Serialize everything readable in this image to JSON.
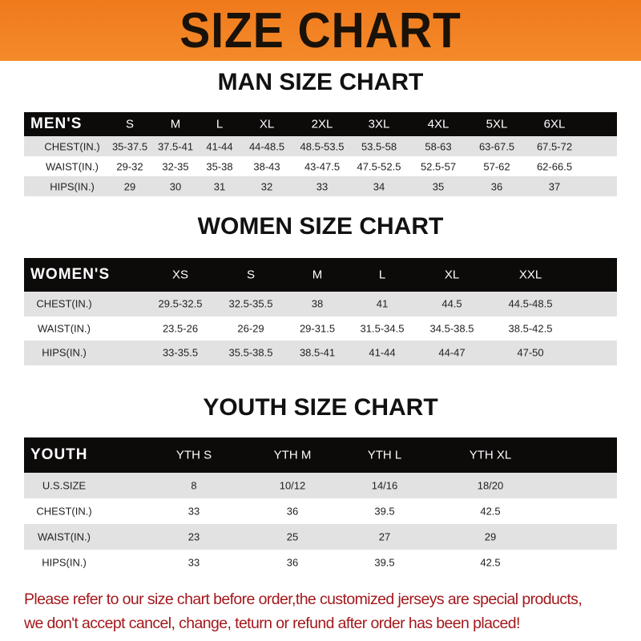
{
  "title": "SIZE CHART",
  "colors": {
    "banner": "#f07a1c",
    "header_row": "#0d0a0a",
    "notice": "#a3181c"
  },
  "men": {
    "title": "MAN SIZE CHART",
    "header": [
      "MEN'S",
      "S",
      "M",
      "L",
      "XL",
      "2XL",
      "3XL",
      "4XL",
      "5XL",
      "6XL"
    ],
    "rows": [
      [
        "CHEST(IN.)",
        "35-37.5",
        "37.5-41",
        "41-44",
        "44-48.5",
        "48.5-53.5",
        "53.5-58",
        "58-63",
        "63-67.5",
        "67.5-72"
      ],
      [
        "WAIST(IN.)",
        "29-32",
        "32-35",
        "35-38",
        "38-43",
        "43-47.5",
        "47.5-52.5",
        "52.5-57",
        "57-62",
        "62-66.5"
      ],
      [
        "HIPS(IN.)",
        "29",
        "30",
        "31",
        "32",
        "33",
        "34",
        "35",
        "36",
        "37"
      ]
    ]
  },
  "women": {
    "title": "WOMEN SIZE CHART",
    "header": [
      "WOMEN'S",
      "XS",
      "S",
      "M",
      "L",
      "XL",
      "XXL"
    ],
    "rows": [
      [
        "CHEST(IN.)",
        "29.5-32.5",
        "32.5-35.5",
        "38",
        "41",
        "44.5",
        "44.5-48.5"
      ],
      [
        "WAIST(IN.)",
        "23.5-26",
        "26-29",
        "29-31.5",
        "31.5-34.5",
        "34.5-38.5",
        "38.5-42.5"
      ],
      [
        "HIPS(IN.)",
        "33-35.5",
        "35.5-38.5",
        "38.5-41",
        "41-44",
        "44-47",
        "47-50"
      ]
    ]
  },
  "youth": {
    "title": "YOUTH SIZE CHART",
    "header": [
      "YOUTH",
      "YTH S",
      "YTH M",
      "YTH L",
      "YTH XL"
    ],
    "rows": [
      [
        "U.S.SIZE",
        "8",
        "10/12",
        "14/16",
        "18/20"
      ],
      [
        "CHEST(IN.)",
        "33",
        "36",
        "39.5",
        "42.5"
      ],
      [
        "WAIST(IN.)",
        "23",
        "25",
        "27",
        "29"
      ],
      [
        "HIPS(IN.)",
        "33",
        "36",
        "39.5",
        "42.5"
      ]
    ]
  },
  "notice": {
    "line1": "Please refer to our size chart before order,the customized jerseys are special products,",
    "line2": "we don't accept cancel, change, teturn or refund after order has been placed!"
  }
}
